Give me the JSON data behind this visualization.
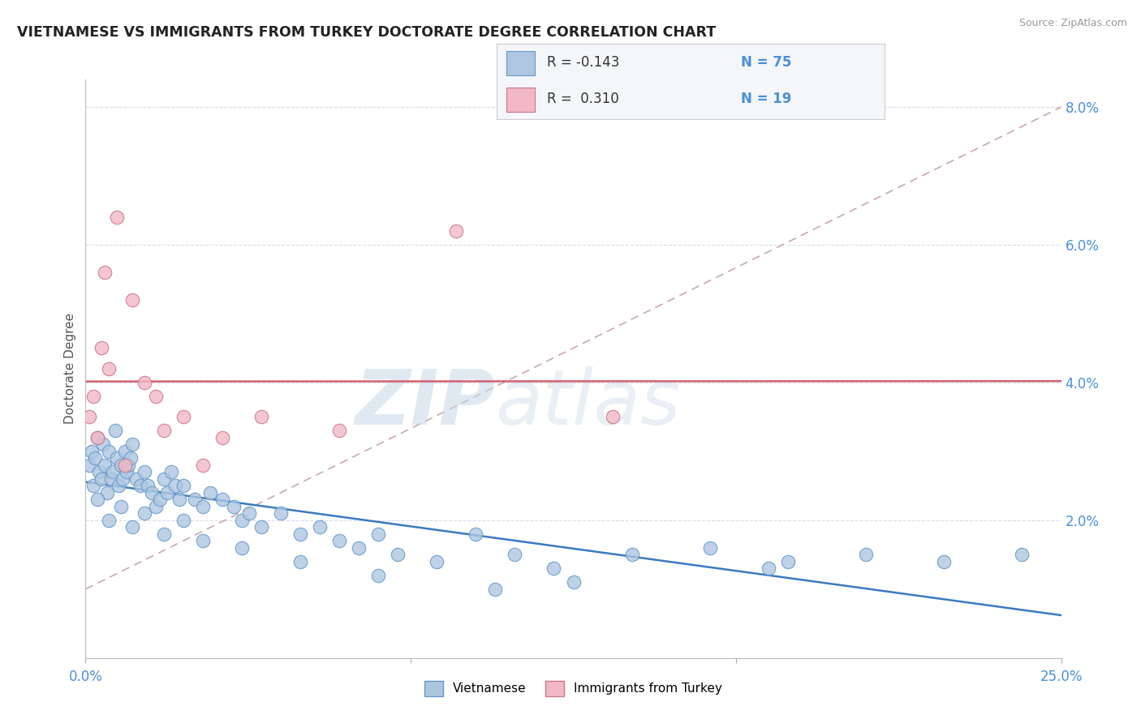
{
  "title": "VIETNAMESE VS IMMIGRANTS FROM TURKEY DOCTORATE DEGREE CORRELATION CHART",
  "source": "Source: ZipAtlas.com",
  "ylabel": "Doctorate Degree",
  "xlim": [
    0.0,
    25.0
  ],
  "ylim": [
    0.0,
    8.4
  ],
  "ytick_vals": [
    2.0,
    4.0,
    6.0,
    8.0
  ],
  "ytick_labels": [
    "2.0%",
    "4.0%",
    "6.0%",
    "8.0%"
  ],
  "watermark_zip": "ZIP",
  "watermark_atlas": "atlas",
  "blue_face": "#aec6e0",
  "blue_edge": "#6699cc",
  "pink_face": "#f2b8c6",
  "pink_edge": "#cc7788",
  "line_blue": "#3a7abf",
  "line_pink": "#d46070",
  "line_gray": "#c8a8b0",
  "grid_color": "#d8dde8",
  "text_color": "#333333",
  "axis_tick_color": "#4a90d9",
  "viet_x": [
    0.1,
    0.15,
    0.2,
    0.25,
    0.3,
    0.35,
    0.4,
    0.45,
    0.5,
    0.55,
    0.6,
    0.65,
    0.7,
    0.75,
    0.8,
    0.85,
    0.9,
    0.95,
    1.0,
    1.05,
    1.1,
    1.15,
    1.2,
    1.3,
    1.4,
    1.5,
    1.6,
    1.7,
    1.8,
    1.9,
    2.0,
    2.1,
    2.2,
    2.3,
    2.4,
    2.5,
    2.8,
    3.0,
    3.2,
    3.5,
    3.8,
    4.0,
    4.2,
    4.5,
    5.0,
    5.5,
    6.0,
    6.5,
    7.0,
    7.5,
    8.0,
    9.0,
    10.0,
    11.0,
    12.0,
    14.0,
    16.0,
    18.0,
    20.0,
    22.0,
    24.0,
    0.3,
    0.6,
    0.9,
    1.2,
    1.5,
    2.0,
    2.5,
    3.0,
    4.0,
    5.5,
    7.5,
    10.5,
    12.5,
    17.5
  ],
  "viet_y": [
    2.8,
    3.0,
    2.5,
    2.9,
    3.2,
    2.7,
    2.6,
    3.1,
    2.8,
    2.4,
    3.0,
    2.6,
    2.7,
    3.3,
    2.9,
    2.5,
    2.8,
    2.6,
    3.0,
    2.7,
    2.8,
    2.9,
    3.1,
    2.6,
    2.5,
    2.7,
    2.5,
    2.4,
    2.2,
    2.3,
    2.6,
    2.4,
    2.7,
    2.5,
    2.3,
    2.5,
    2.3,
    2.2,
    2.4,
    2.3,
    2.2,
    2.0,
    2.1,
    1.9,
    2.1,
    1.8,
    1.9,
    1.7,
    1.6,
    1.8,
    1.5,
    1.4,
    1.8,
    1.5,
    1.3,
    1.5,
    1.6,
    1.4,
    1.5,
    1.4,
    1.5,
    2.3,
    2.0,
    2.2,
    1.9,
    2.1,
    1.8,
    2.0,
    1.7,
    1.6,
    1.4,
    1.2,
    1.0,
    1.1,
    1.3
  ],
  "turk_x": [
    0.1,
    0.2,
    0.3,
    0.4,
    0.5,
    0.6,
    0.8,
    1.0,
    1.2,
    1.5,
    1.8,
    2.0,
    2.5,
    3.0,
    3.5,
    4.5,
    6.5,
    9.5,
    13.5
  ],
  "turk_y": [
    3.5,
    3.8,
    3.2,
    4.5,
    5.6,
    4.2,
    6.4,
    2.8,
    5.2,
    4.0,
    3.8,
    3.3,
    3.5,
    2.8,
    3.2,
    3.5,
    3.3,
    6.2,
    3.5
  ],
  "legend_r1_label": "R = -0.143",
  "legend_n1_label": "N = 75",
  "legend_r2_label": "R =  0.310",
  "legend_n2_label": "N = 19",
  "bottom_legend_1": "Vietnamese",
  "bottom_legend_2": "Immigrants from Turkey"
}
